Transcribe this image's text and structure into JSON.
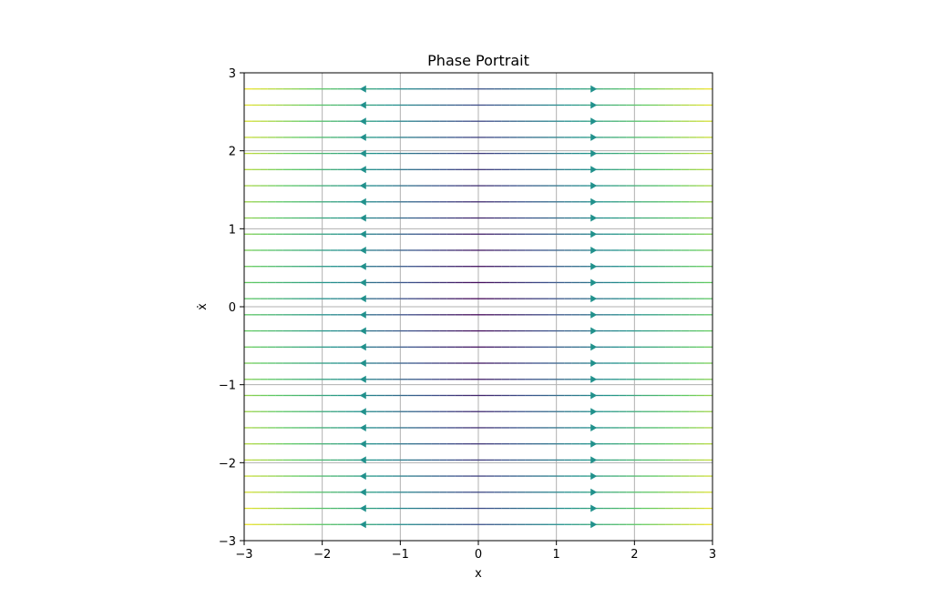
{
  "chart_data": {
    "type": "streamplot",
    "title": "Phase Portrait",
    "xlabel": "x",
    "ylabel": "ẋ",
    "xlim": [
      -3,
      3
    ],
    "ylim": [
      -3,
      3
    ],
    "x_ticks": [
      -3,
      -2,
      -1,
      0,
      1,
      2,
      3
    ],
    "y_ticks": [
      -3,
      -2,
      -1,
      0,
      1,
      2,
      3
    ],
    "x_tick_labels": [
      "−3",
      "−2",
      "−1",
      "0",
      "1",
      "2",
      "3"
    ],
    "y_tick_labels": [
      "−3",
      "−2",
      "−1",
      "0",
      "1",
      "2",
      "3"
    ],
    "grid": true,
    "streamline_y": [
      -2.793,
      -2.586,
      -2.379,
      -2.172,
      -1.966,
      -1.759,
      -1.552,
      -1.345,
      -1.138,
      -0.931,
      -0.724,
      -0.517,
      -0.31,
      -0.103,
      0.103,
      0.31,
      0.517,
      0.724,
      0.931,
      1.138,
      1.345,
      1.552,
      1.759,
      1.966,
      2.172,
      2.379,
      2.586,
      2.793
    ],
    "flow_direction": "outward from x = 0 (toward left for x < 0, toward right for x > 0)",
    "arrow_x": [
      -1.45,
      1.45
    ],
    "colormap": "viridis",
    "colors": {
      "low": "#440154",
      "mid_low": "#3b528b",
      "mid": "#21918c",
      "mid_high": "#5ec962",
      "high": "#fde725",
      "grid": "#b0b0b0"
    }
  }
}
